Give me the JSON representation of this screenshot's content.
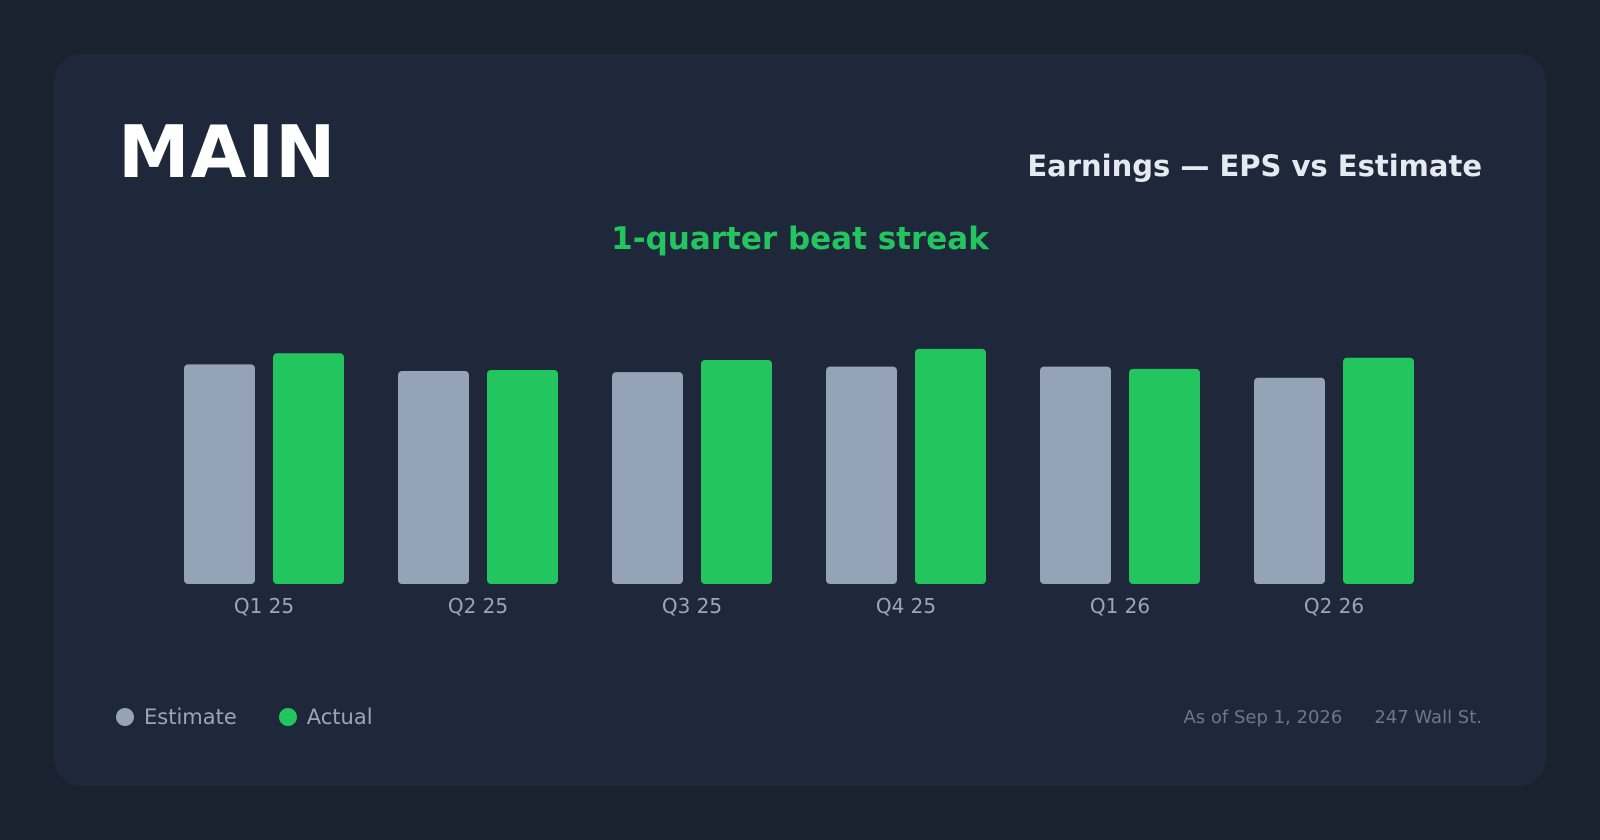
{
  "header": {
    "ticker": "MAIN",
    "title": "Earnings — EPS vs Estimate",
    "streak": "1-quarter beat streak"
  },
  "legend": {
    "estimate_label": "Estimate",
    "actual_label": "Actual"
  },
  "footer": {
    "as_of": "As of Sep 1, 2026",
    "source": "247 Wall St."
  },
  "colors": {
    "estimate": "#94a3b8",
    "actual": "#22c55e",
    "tick_label": "#9aa6b8"
  },
  "chart_data": {
    "type": "bar",
    "categories": [
      "Q1 25",
      "Q2 25",
      "Q3 25",
      "Q4 25",
      "Q1 26",
      "Q2 26"
    ],
    "series": [
      {
        "name": "Estimate",
        "values": [
          0.99,
          0.96,
          0.955,
          0.98,
          0.98,
          0.93
        ]
      },
      {
        "name": "Actual",
        "values": [
          1.04,
          0.965,
          1.01,
          1.06,
          0.97,
          1.02
        ]
      }
    ],
    "title": "Earnings — EPS vs Estimate",
    "xlabel": "",
    "ylabel": "",
    "ylim": [
      0,
      1.1
    ],
    "grid": false,
    "legend": "bottom-left"
  }
}
